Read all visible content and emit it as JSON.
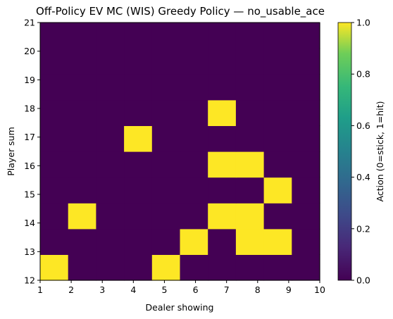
{
  "chart_data": {
    "type": "heatmap",
    "title": "Off-Policy EV MC (WIS) Greedy Policy — no_usable_ace",
    "xlabel": "Dealer showing",
    "ylabel": "Player sum",
    "x_extent": [
      1,
      10
    ],
    "y_extent": [
      12,
      21
    ],
    "x_ticks": [
      "1",
      "2",
      "3",
      "4",
      "5",
      "6",
      "7",
      "8",
      "9",
      "10"
    ],
    "y_ticks": [
      "12",
      "13",
      "14",
      "15",
      "16",
      "17",
      "18",
      "19",
      "20",
      "21"
    ],
    "colormap": "viridis",
    "low_color": "#440154",
    "high_color": "#fde725",
    "colorbar": {
      "label": "Action (0=stick, 1=hit)",
      "range": [
        0.0,
        1.0
      ],
      "ticks": [
        "0.0",
        "0.2",
        "0.4",
        "0.6",
        "0.8",
        "1.0"
      ]
    },
    "grid": false,
    "rows_bottom_to_top": [
      [
        1,
        0,
        0,
        0,
        1,
        0,
        0,
        0,
        0,
        0
      ],
      [
        0,
        0,
        0,
        0,
        0,
        1,
        0,
        1,
        1,
        0
      ],
      [
        0,
        1,
        0,
        0,
        0,
        0,
        1,
        1,
        0,
        0
      ],
      [
        0,
        0,
        0,
        0,
        0,
        0,
        0,
        0,
        1,
        0
      ],
      [
        0,
        0,
        0,
        0,
        0,
        0,
        1,
        1,
        0,
        0
      ],
      [
        0,
        0,
        0,
        1,
        0,
        0,
        0,
        0,
        0,
        0
      ],
      [
        0,
        0,
        0,
        0,
        0,
        0,
        1,
        0,
        0,
        0
      ],
      [
        0,
        0,
        0,
        0,
        0,
        0,
        0,
        0,
        0,
        0
      ],
      [
        0,
        0,
        0,
        0,
        0,
        0,
        0,
        0,
        0,
        0
      ],
      [
        0,
        0,
        0,
        0,
        0,
        0,
        0,
        0,
        0,
        0
      ]
    ]
  }
}
